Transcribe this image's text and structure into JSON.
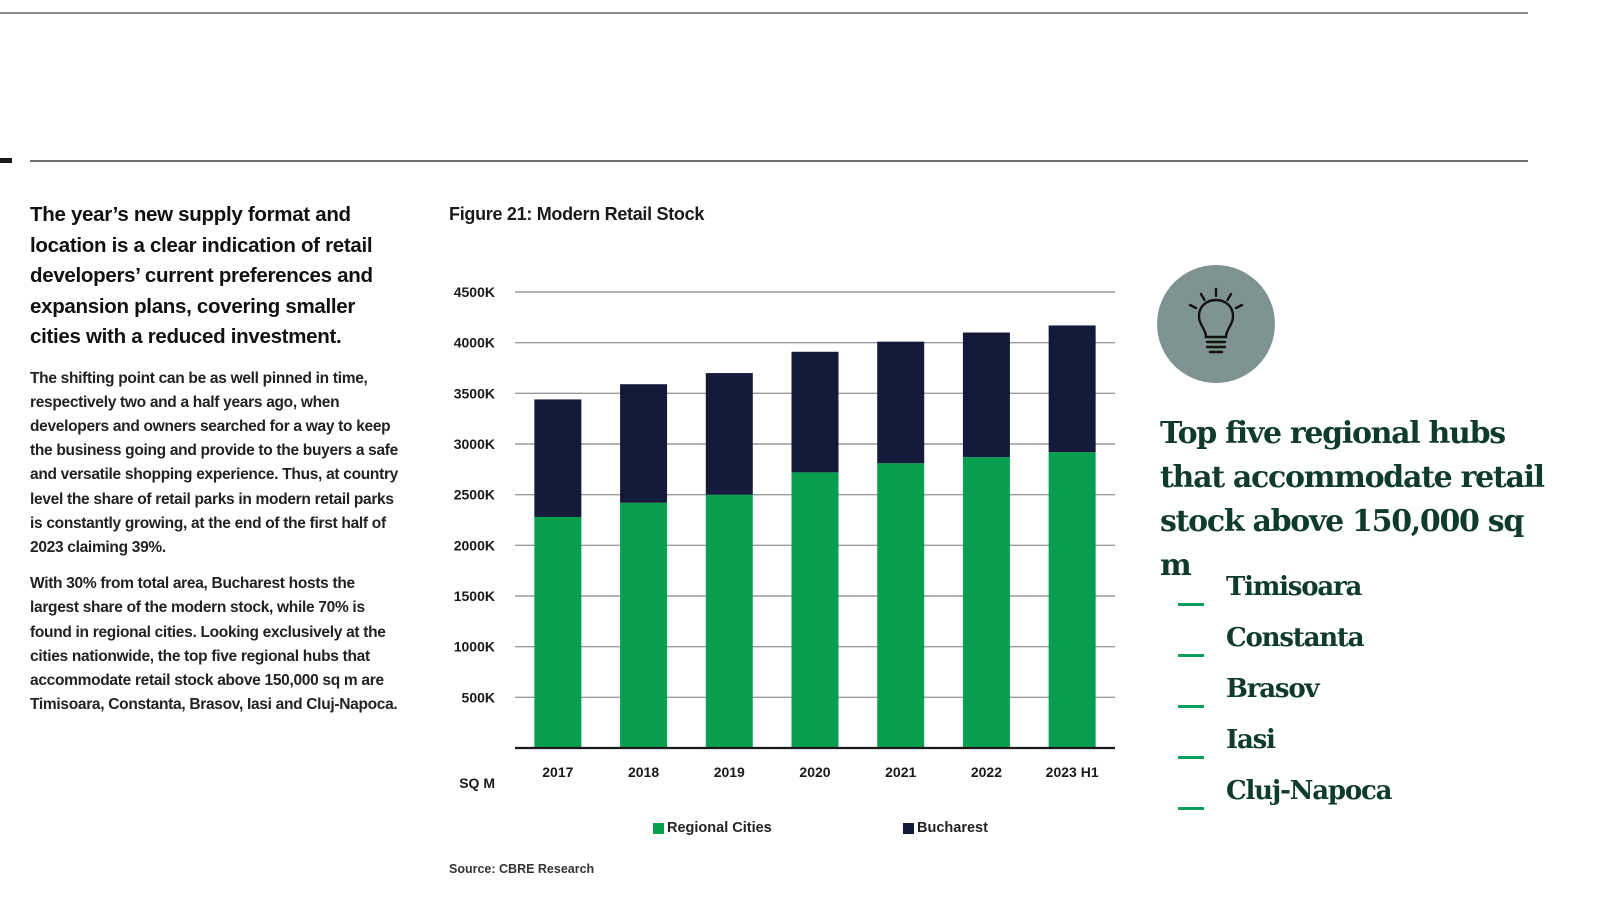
{
  "left_text": {
    "lead": "The year’s new supply format and location is a clear indication of retail developers’ current preferences and expansion plans, covering smaller cities with a reduced investment.",
    "paragraph_1": "The shifting point can be as well pinned in time, respectively two and a half years ago, when developers and owners searched for a way to keep the business going and provide to the buyers a safe and versatile shopping experience. Thus, at country level the share of retail parks in modern retail parks is constantly growing, at the end of the first half of 2023 claiming 39%.",
    "paragraph_2": "With 30% from total area, Bucharest hosts the largest share of the modern stock, while 70% is found in regional cities. Looking exclusively at the cities nationwide, the top five regional hubs that accommodate retail stock above 150,000 sq m are Timisoara, Constanta, Brasov, Iasi and Cluj-Napoca."
  },
  "figure": {
    "title": "Figure 21: Modern Retail Stock",
    "source": "Source: CBRE Research"
  },
  "chart_data": {
    "type": "bar",
    "stacked": true,
    "title": "Figure 21: Modern Retail Stock",
    "categories": [
      "2017",
      "2018",
      "2019",
      "2020",
      "2021",
      "2022",
      "2023 H1"
    ],
    "series": [
      {
        "name": "Regional Cities",
        "color": "#079f4f",
        "values": [
          2280,
          2420,
          2500,
          2720,
          2810,
          2870,
          2920
        ]
      },
      {
        "name": "Bucharest",
        "color": "#141a3a",
        "values": [
          1160,
          1170,
          1200,
          1190,
          1200,
          1230,
          1250
        ]
      }
    ],
    "ylabel": "SQ M",
    "xlabel": "",
    "ylim": [
      0,
      4500
    ],
    "yticks": [
      500,
      1000,
      1500,
      2000,
      2500,
      3000,
      3500,
      4000,
      4500
    ],
    "ytick_labels": [
      "500K",
      "1000K",
      "1500K",
      "2000K",
      "2500K",
      "3000K",
      "3500K",
      "4000K",
      "4500K"
    ],
    "grid": true,
    "legend_position": "bottom"
  },
  "hubs": {
    "icon": "lightbulb-icon",
    "title": "Top five regional hubs that accommodate retail stock above 150,000 sq m",
    "items": [
      "Timisoara",
      "Constanta",
      "Brasov",
      "Iasi",
      "Cluj-Napoca"
    ],
    "accent_color": "#079f59"
  }
}
